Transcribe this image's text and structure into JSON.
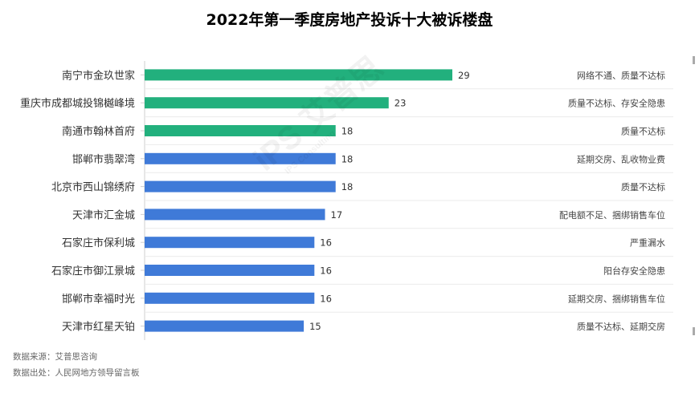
{
  "chart_data": {
    "type": "bar",
    "orientation": "horizontal",
    "title": "2022年第一季度房地产投诉十大被诉楼盘",
    "categories": [
      "南宁市金玖世家",
      "重庆市成都城投锦樾峰境",
      "南通市翰林首府",
      "邯郸市翡翠湾",
      "北京市西山锦绣府",
      "天津市汇金城",
      "石家庄市保利城",
      "石家庄市御江景城",
      "邯郸市幸福时光",
      "天津市红星天铂"
    ],
    "values": [
      29,
      23,
      18,
      18,
      18,
      17,
      16,
      16,
      16,
      15
    ],
    "bar_colors": [
      "#22b07d",
      "#22b07d",
      "#22b07d",
      "#3f7ad8",
      "#3f7ad8",
      "#3f7ad8",
      "#3f7ad8",
      "#3f7ad8",
      "#3f7ad8",
      "#3f7ad8"
    ],
    "annotations": [
      "网络不通、质量不达标",
      "质量不达标、存安全隐患",
      "质量不达标",
      "延期交房、乱收物业费",
      "质量不达标",
      "配电额不足、捆绑销售车位",
      "严重漏水",
      "阳台存安全隐患",
      "延期交房、捆绑销售车位",
      "质量不达标、延期交房"
    ],
    "xlim": [
      0,
      29
    ],
    "grid": true,
    "legend": "none"
  },
  "footer": {
    "source": "数据来源：艾普思咨询",
    "origin": "数据出处：人民网地方领导留言板"
  },
  "watermark": {
    "logo_text": "iPS 艾普思",
    "subtext": "IPS Consulting"
  }
}
